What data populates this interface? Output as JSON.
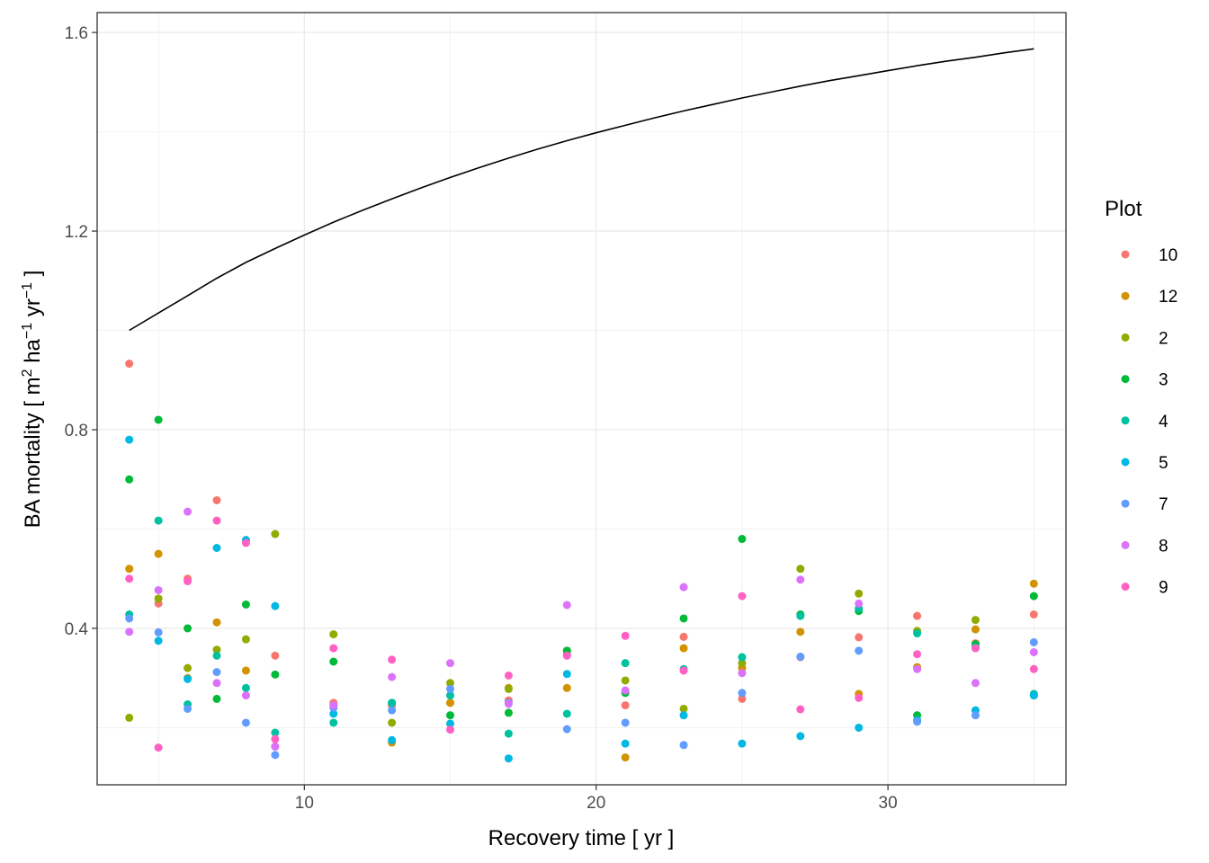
{
  "chart_data": {
    "type": "scatter",
    "xlabel": "Recovery time [ yr ]",
    "ylabel": {
      "prefix": "BA mortality [ m",
      "sup1": "2",
      "mid1": " ha",
      "sup2": "−1",
      "mid2": " yr",
      "sup3": "−1",
      "suffix": " ]"
    },
    "xlim": [
      2.9,
      36.1
    ],
    "ylim": [
      0.085,
      1.64
    ],
    "x_ticks": [
      10,
      20,
      30
    ],
    "y_ticks": [
      0.4,
      0.8,
      1.2,
      1.6
    ],
    "y_tick_labels": [
      "0.4",
      "0.8",
      "1.2",
      "1.6"
    ],
    "grid": true,
    "legend": {
      "title": "Plot",
      "position": "right"
    },
    "series": [
      {
        "name": "10",
        "color": "#F8766D",
        "x": [
          4,
          5,
          6,
          7,
          8,
          9,
          11,
          13,
          15,
          17,
          19,
          21,
          23,
          25,
          27,
          29,
          31,
          33,
          35
        ],
        "y": [
          0.933,
          0.45,
          0.5,
          0.658,
          0.577,
          0.345,
          0.25,
          0.245,
          0.25,
          0.255,
          0.347,
          0.245,
          0.383,
          0.258,
          0.342,
          0.382,
          0.425,
          0.37,
          0.428
        ]
      },
      {
        "name": "12",
        "color": "#D39200",
        "x": [
          4,
          5,
          6,
          7,
          8,
          9,
          11,
          13,
          15,
          17,
          19,
          21,
          23,
          25,
          27,
          29,
          31,
          33,
          35
        ],
        "y": [
          0.52,
          0.55,
          0.3,
          0.412,
          0.315,
          0.162,
          0.245,
          0.17,
          0.25,
          0.28,
          0.28,
          0.14,
          0.36,
          0.32,
          0.393,
          0.268,
          0.322,
          0.398,
          0.49
        ]
      },
      {
        "name": "2",
        "color": "#93AA00",
        "x": [
          4,
          5,
          6,
          7,
          8,
          9,
          11,
          13,
          15,
          17,
          19,
          21,
          23,
          25,
          27,
          29,
          31,
          33,
          35
        ],
        "y": [
          0.22,
          0.46,
          0.32,
          0.357,
          0.378,
          0.59,
          0.388,
          0.21,
          0.29,
          0.278,
          0.355,
          0.295,
          0.238,
          0.33,
          0.52,
          0.47,
          0.395,
          0.417,
          0.265
        ]
      },
      {
        "name": "3",
        "color": "#00BA38",
        "x": [
          4,
          5,
          6,
          7,
          8,
          9,
          11,
          13,
          15,
          17,
          19,
          21,
          23,
          25,
          27,
          29,
          31,
          33,
          35
        ],
        "y": [
          0.7,
          0.82,
          0.4,
          0.258,
          0.448,
          0.307,
          0.333,
          0.25,
          0.225,
          0.23,
          0.355,
          0.27,
          0.42,
          0.58,
          0.428,
          0.435,
          0.225,
          0.368,
          0.465
        ]
      },
      {
        "name": "4",
        "color": "#00C19F",
        "x": [
          4,
          5,
          6,
          7,
          8,
          9,
          11,
          13,
          15,
          17,
          19,
          21,
          23,
          25,
          27,
          29,
          31,
          33,
          35
        ],
        "y": [
          0.428,
          0.617,
          0.247,
          0.345,
          0.28,
          0.19,
          0.21,
          0.25,
          0.265,
          0.188,
          0.228,
          0.33,
          0.318,
          0.342,
          0.425,
          0.44,
          0.39,
          0.362,
          0.268
        ]
      },
      {
        "name": "5",
        "color": "#00B9E3",
        "x": [
          4,
          5,
          6,
          7,
          8,
          9,
          11,
          13,
          15,
          17,
          19,
          21,
          23,
          25,
          27,
          29,
          31,
          33,
          35
        ],
        "y": [
          0.78,
          0.375,
          0.298,
          0.562,
          0.578,
          0.445,
          0.228,
          0.175,
          0.208,
          0.138,
          0.308,
          0.168,
          0.225,
          0.168,
          0.183,
          0.2,
          0.215,
          0.235,
          0.265
        ]
      },
      {
        "name": "7",
        "color": "#619CFF",
        "x": [
          4,
          5,
          6,
          7,
          8,
          9,
          11,
          13,
          15,
          17,
          19,
          21,
          23,
          25,
          27,
          29,
          31,
          33,
          35
        ],
        "y": [
          0.42,
          0.392,
          0.238,
          0.312,
          0.21,
          0.145,
          0.24,
          0.235,
          0.278,
          0.25,
          0.197,
          0.21,
          0.165,
          0.27,
          0.343,
          0.355,
          0.212,
          0.225,
          0.372
        ]
      },
      {
        "name": "8",
        "color": "#DB72FB",
        "x": [
          4,
          5,
          6,
          7,
          8,
          9,
          11,
          13,
          15,
          17,
          19,
          21,
          23,
          25,
          27,
          29,
          31,
          33,
          35
        ],
        "y": [
          0.393,
          0.477,
          0.635,
          0.29,
          0.265,
          0.162,
          0.245,
          0.302,
          0.33,
          0.248,
          0.447,
          0.275,
          0.483,
          0.31,
          0.498,
          0.45,
          0.318,
          0.29,
          0.352
        ]
      },
      {
        "name": "9",
        "color": "#FF61C3",
        "x": [
          4,
          5,
          6,
          7,
          8,
          9,
          11,
          13,
          15,
          17,
          19,
          21,
          23,
          25,
          27,
          29,
          31,
          33,
          35
        ],
        "y": [
          0.5,
          0.16,
          0.495,
          0.617,
          0.572,
          0.177,
          0.36,
          0.337,
          0.196,
          0.305,
          0.345,
          0.385,
          0.315,
          0.465,
          0.237,
          0.26,
          0.348,
          0.36,
          0.318
        ]
      }
    ],
    "curve": {
      "color": "#000000",
      "x": [
        4,
        5,
        6,
        7,
        8,
        9,
        10,
        11,
        12,
        13,
        14,
        15,
        16,
        17,
        18,
        19,
        20,
        21,
        22,
        23,
        24,
        25,
        26,
        27,
        28,
        29,
        30,
        31,
        32,
        33,
        34,
        35
      ],
      "y": [
        1.0,
        1.035,
        1.07,
        1.105,
        1.137,
        1.165,
        1.192,
        1.218,
        1.242,
        1.265,
        1.287,
        1.308,
        1.328,
        1.347,
        1.365,
        1.382,
        1.398,
        1.413,
        1.428,
        1.442,
        1.455,
        1.468,
        1.48,
        1.492,
        1.503,
        1.513,
        1.523,
        1.533,
        1.542,
        1.55,
        1.559,
        1.567
      ]
    }
  }
}
